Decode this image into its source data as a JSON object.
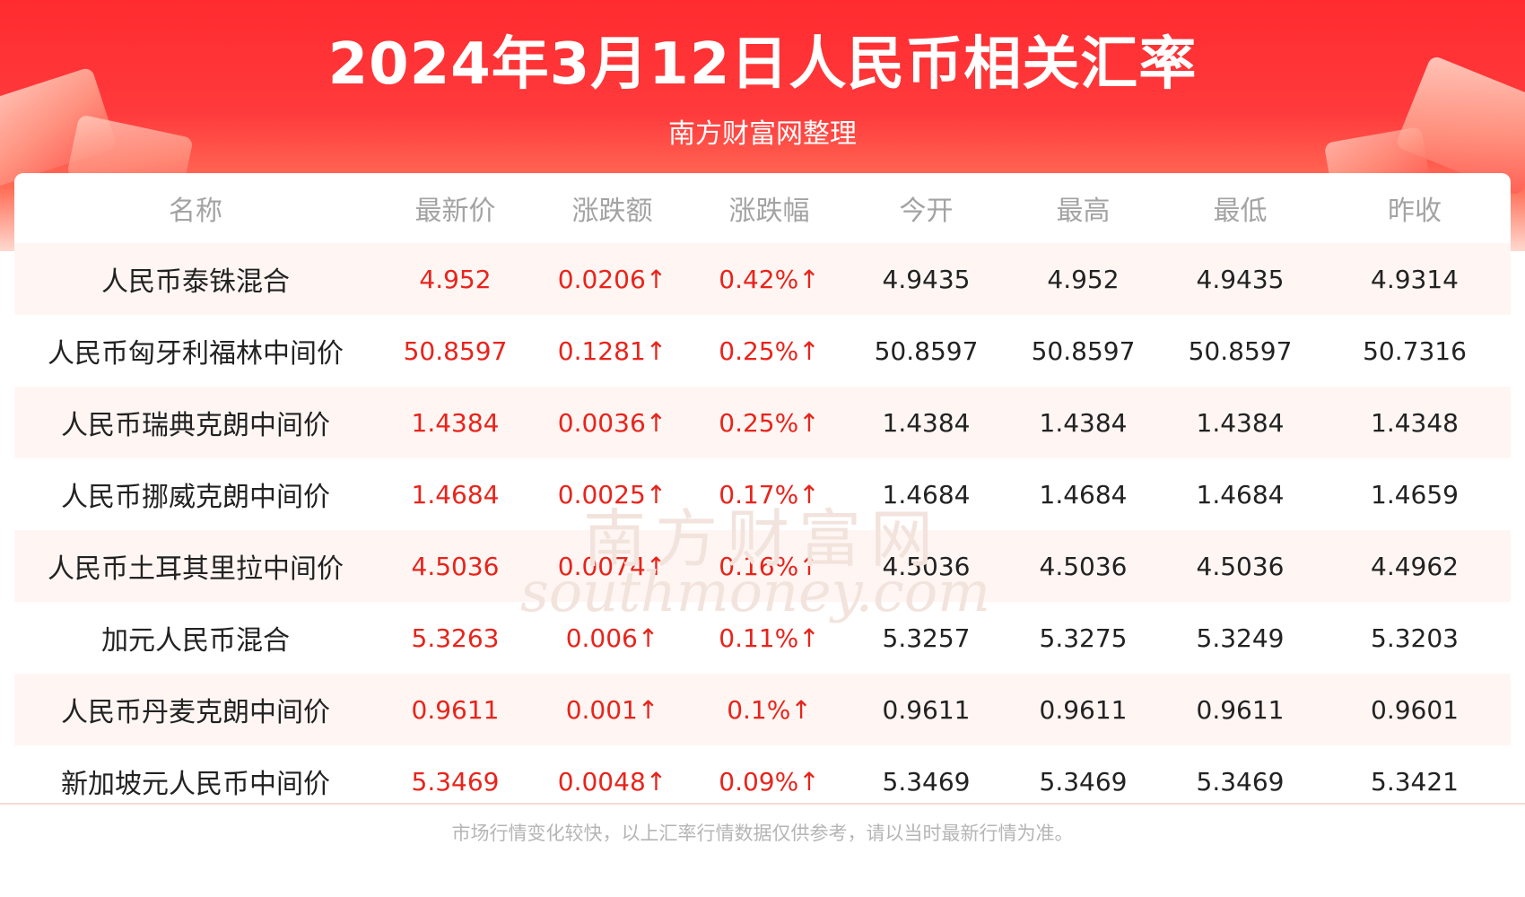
{
  "header": {
    "title": "2024年3月12日人民币相关汇率",
    "subtitle": "南方财富网整理"
  },
  "table": {
    "columns": [
      "名称",
      "最新价",
      "涨跌额",
      "涨跌幅",
      "今开",
      "最高",
      "最低",
      "昨收"
    ],
    "rows": [
      [
        "人民币泰铢混合",
        "4.952",
        "0.0206↑",
        "0.42%↑",
        "4.9435",
        "4.952",
        "4.9435",
        "4.9314"
      ],
      [
        "人民币匈牙利福林中间价",
        "50.8597",
        "0.1281↑",
        "0.25%↑",
        "50.8597",
        "50.8597",
        "50.8597",
        "50.7316"
      ],
      [
        "人民币瑞典克朗中间价",
        "1.4384",
        "0.0036↑",
        "0.25%↑",
        "1.4384",
        "1.4384",
        "1.4384",
        "1.4348"
      ],
      [
        "人民币挪威克朗中间价",
        "1.4684",
        "0.0025↑",
        "0.17%↑",
        "1.4684",
        "1.4684",
        "1.4684",
        "1.4659"
      ],
      [
        "人民币土耳其里拉中间价",
        "4.5036",
        "0.0074↑",
        "0.16%↑",
        "4.5036",
        "4.5036",
        "4.5036",
        "4.4962"
      ],
      [
        "加元人民币混合",
        "5.3263",
        "0.006↑",
        "0.11%↑",
        "5.3257",
        "5.3275",
        "5.3249",
        "5.3203"
      ],
      [
        "人民币丹麦克朗中间价",
        "0.9611",
        "0.001↑",
        "0.1%↑",
        "0.9611",
        "0.9611",
        "0.9611",
        "0.9601"
      ],
      [
        "新加坡元人民币中间价",
        "5.3469",
        "0.0048↑",
        "0.09%↑",
        "5.3469",
        "5.3469",
        "5.3469",
        "5.3421"
      ]
    ]
  },
  "watermark": {
    "cn": "南方财富网",
    "en": "southmoney.com"
  },
  "footer": {
    "note": "市场行情变化较快，以上汇率行情数据仅供参考，请以当时最新行情为准。"
  },
  "colors": {
    "banner": "#ff2b2f",
    "up": "#e8241b",
    "header_text": "#a3a3a3",
    "row_stripe": "#fff6f3"
  }
}
